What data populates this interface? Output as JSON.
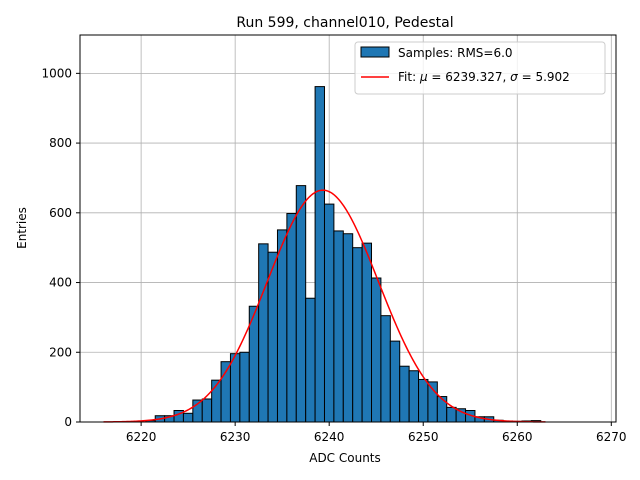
{
  "chart_data": {
    "type": "bar",
    "title": "Run 599, channel010, Pedestal",
    "xlabel": "ADC Counts",
    "ylabel": "Entries",
    "xlim": [
      6213.5,
      6270.5
    ],
    "ylim": [
      0,
      1110
    ],
    "xticks": [
      6220,
      6230,
      6240,
      6250,
      6260,
      6270
    ],
    "yticks": [
      0,
      200,
      400,
      600,
      800,
      1000
    ],
    "grid": true,
    "legend_position": "top-right",
    "bin_width": 1,
    "series": [
      {
        "name": "Samples: RMS=6.0",
        "kind": "histogram",
        "color": "#1f77b4",
        "bin_centers": [
          6221,
          6222,
          6223,
          6224,
          6225,
          6226,
          6227,
          6228,
          6229,
          6230,
          6231,
          6232,
          6233,
          6234,
          6235,
          6236,
          6237,
          6238,
          6239,
          6240,
          6241,
          6242,
          6243,
          6244,
          6245,
          6246,
          6247,
          6248,
          6249,
          6250,
          6251,
          6252,
          6253,
          6254,
          6255,
          6256,
          6257,
          6258,
          6259,
          6260,
          6261,
          6262
        ],
        "values": [
          4,
          18,
          18,
          33,
          25,
          63,
          66,
          120,
          173,
          196,
          200,
          332,
          511,
          487,
          551,
          598,
          678,
          355,
          962,
          625,
          548,
          540,
          500,
          513,
          413,
          305,
          232,
          160,
          147,
          122,
          115,
          73,
          42,
          38,
          33,
          15,
          15,
          5,
          3,
          2,
          3,
          4
        ]
      },
      {
        "name": "Fit: μ = 6239.327, σ = 5.902",
        "kind": "gaussian",
        "color": "#ff0000",
        "mu": 6239.327,
        "sigma": 5.902,
        "amplitude": 665,
        "x_range": [
          6216,
          6263
        ]
      }
    ]
  },
  "legend": {
    "samples_label": "Samples: RMS=6.0",
    "fit_label_prefix": "Fit: ",
    "mu_symbol": "μ",
    "sigma_symbol": "σ",
    "fit_mu_text": " = 6239.327, ",
    "fit_sigma_text": " = 5.902"
  }
}
